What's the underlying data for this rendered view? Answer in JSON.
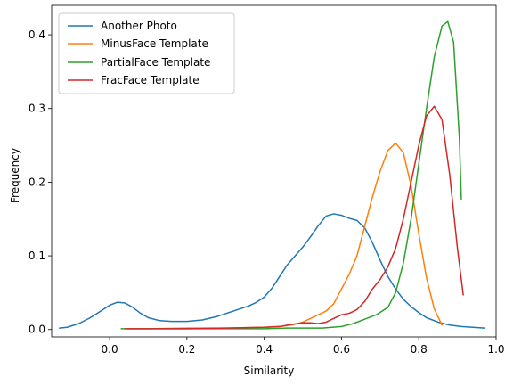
{
  "chart_data": {
    "type": "line",
    "title": "",
    "xlabel": "Similarity",
    "ylabel": "Frequency",
    "xlim": [
      -0.15,
      1.0
    ],
    "ylim": [
      -0.01,
      0.44
    ],
    "xticks": [
      "0.0",
      "0.2",
      "0.4",
      "0.6",
      "0.8",
      "1.0"
    ],
    "yticks": [
      "0.0",
      "0.1",
      "0.2",
      "0.3",
      "0.4"
    ],
    "grid": false,
    "legend_placement": "top-left",
    "series": [
      {
        "name": "Another Photo",
        "color": "#1f77b4",
        "points": [
          [
            -0.13,
            0.002
          ],
          [
            -0.11,
            0.003
          ],
          [
            -0.08,
            0.008
          ],
          [
            -0.05,
            0.016
          ],
          [
            -0.02,
            0.026
          ],
          [
            0.0,
            0.033
          ],
          [
            0.02,
            0.037
          ],
          [
            0.04,
            0.036
          ],
          [
            0.06,
            0.03
          ],
          [
            0.08,
            0.022
          ],
          [
            0.1,
            0.016
          ],
          [
            0.13,
            0.012
          ],
          [
            0.16,
            0.011
          ],
          [
            0.2,
            0.011
          ],
          [
            0.24,
            0.013
          ],
          [
            0.28,
            0.018
          ],
          [
            0.32,
            0.025
          ],
          [
            0.36,
            0.032
          ],
          [
            0.38,
            0.037
          ],
          [
            0.4,
            0.044
          ],
          [
            0.42,
            0.056
          ],
          [
            0.44,
            0.072
          ],
          [
            0.46,
            0.088
          ],
          [
            0.48,
            0.1
          ],
          [
            0.5,
            0.112
          ],
          [
            0.52,
            0.126
          ],
          [
            0.54,
            0.141
          ],
          [
            0.56,
            0.154
          ],
          [
            0.58,
            0.157
          ],
          [
            0.6,
            0.155
          ],
          [
            0.62,
            0.151
          ],
          [
            0.64,
            0.148
          ],
          [
            0.66,
            0.138
          ],
          [
            0.68,
            0.118
          ],
          [
            0.7,
            0.094
          ],
          [
            0.72,
            0.072
          ],
          [
            0.74,
            0.055
          ],
          [
            0.76,
            0.041
          ],
          [
            0.78,
            0.031
          ],
          [
            0.8,
            0.023
          ],
          [
            0.82,
            0.016
          ],
          [
            0.85,
            0.01
          ],
          [
            0.88,
            0.006
          ],
          [
            0.91,
            0.004
          ],
          [
            0.94,
            0.003
          ],
          [
            0.97,
            0.002
          ]
        ]
      },
      {
        "name": "MinusFace Template",
        "color": "#ff7f0e",
        "points": [
          [
            0.05,
            0.001
          ],
          [
            0.1,
            0.001
          ],
          [
            0.2,
            0.002
          ],
          [
            0.3,
            0.002
          ],
          [
            0.4,
            0.003
          ],
          [
            0.44,
            0.004
          ],
          [
            0.47,
            0.006
          ],
          [
            0.5,
            0.01
          ],
          [
            0.52,
            0.015
          ],
          [
            0.54,
            0.02
          ],
          [
            0.56,
            0.025
          ],
          [
            0.58,
            0.035
          ],
          [
            0.6,
            0.055
          ],
          [
            0.62,
            0.075
          ],
          [
            0.64,
            0.1
          ],
          [
            0.66,
            0.14
          ],
          [
            0.68,
            0.18
          ],
          [
            0.7,
            0.215
          ],
          [
            0.72,
            0.243
          ],
          [
            0.74,
            0.253
          ],
          [
            0.76,
            0.24
          ],
          [
            0.78,
            0.195
          ],
          [
            0.8,
            0.13
          ],
          [
            0.82,
            0.07
          ],
          [
            0.84,
            0.028
          ],
          [
            0.86,
            0.006
          ]
        ]
      },
      {
        "name": "PartialFace Template",
        "color": "#2ca02c",
        "points": [
          [
            0.03,
            0.001
          ],
          [
            0.1,
            0.001
          ],
          [
            0.2,
            0.001
          ],
          [
            0.3,
            0.001
          ],
          [
            0.4,
            0.001
          ],
          [
            0.46,
            0.002
          ],
          [
            0.5,
            0.002
          ],
          [
            0.55,
            0.002
          ],
          [
            0.6,
            0.004
          ],
          [
            0.63,
            0.008
          ],
          [
            0.66,
            0.014
          ],
          [
            0.69,
            0.02
          ],
          [
            0.72,
            0.03
          ],
          [
            0.74,
            0.05
          ],
          [
            0.76,
            0.09
          ],
          [
            0.78,
            0.15
          ],
          [
            0.8,
            0.225
          ],
          [
            0.82,
            0.3
          ],
          [
            0.84,
            0.37
          ],
          [
            0.86,
            0.412
          ],
          [
            0.875,
            0.418
          ],
          [
            0.89,
            0.39
          ],
          [
            0.905,
            0.26
          ],
          [
            0.91,
            0.177
          ]
        ]
      },
      {
        "name": "FracFace Template",
        "color": "#d62728",
        "points": [
          [
            0.04,
            0.001
          ],
          [
            0.1,
            0.001
          ],
          [
            0.2,
            0.001
          ],
          [
            0.3,
            0.002
          ],
          [
            0.4,
            0.003
          ],
          [
            0.44,
            0.004
          ],
          [
            0.47,
            0.007
          ],
          [
            0.5,
            0.009
          ],
          [
            0.52,
            0.009
          ],
          [
            0.54,
            0.008
          ],
          [
            0.56,
            0.01
          ],
          [
            0.58,
            0.015
          ],
          [
            0.6,
            0.02
          ],
          [
            0.62,
            0.022
          ],
          [
            0.64,
            0.027
          ],
          [
            0.66,
            0.038
          ],
          [
            0.68,
            0.055
          ],
          [
            0.7,
            0.068
          ],
          [
            0.72,
            0.085
          ],
          [
            0.74,
            0.11
          ],
          [
            0.76,
            0.15
          ],
          [
            0.78,
            0.2
          ],
          [
            0.8,
            0.25
          ],
          [
            0.82,
            0.29
          ],
          [
            0.84,
            0.303
          ],
          [
            0.86,
            0.285
          ],
          [
            0.88,
            0.21
          ],
          [
            0.9,
            0.11
          ],
          [
            0.915,
            0.047
          ]
        ]
      }
    ]
  }
}
